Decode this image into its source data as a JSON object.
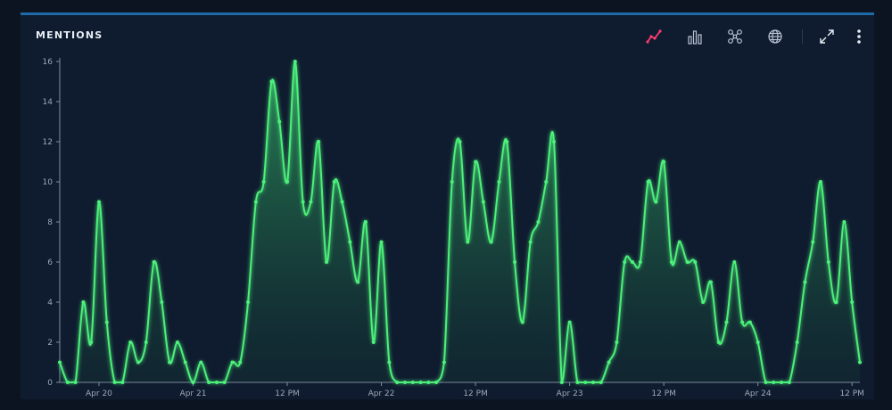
{
  "panel": {
    "title": "MENTIONS",
    "toolbar": [
      {
        "icon": "line-chart-icon",
        "active": true
      },
      {
        "icon": "bar-chart-icon",
        "active": false
      },
      {
        "icon": "network-icon",
        "active": false
      },
      {
        "icon": "globe-icon",
        "active": false
      },
      {
        "icon": "expand-icon",
        "active": false
      },
      {
        "icon": "more-vertical-icon",
        "active": false
      }
    ]
  },
  "colors": {
    "line": "#4cf07a",
    "active_icon": "#ff3d6e",
    "icon": "#b8c4d4",
    "axis": "#7f8ea3"
  },
  "chart_data": {
    "type": "area",
    "title": "",
    "xlabel": "",
    "ylabel": "",
    "ylim": [
      0,
      16
    ],
    "yticks": [
      0,
      2,
      4,
      6,
      8,
      10,
      12,
      14,
      16
    ],
    "grid": false,
    "legend": "none",
    "xticks": [
      {
        "label": "Apr 20",
        "index": 5
      },
      {
        "label": "Apr 21",
        "index": 17
      },
      {
        "label": "12 PM",
        "index": 29
      },
      {
        "label": "Apr 22",
        "index": 41
      },
      {
        "label": "12 PM",
        "index": 53
      },
      {
        "label": "Apr 23",
        "index": 65
      },
      {
        "label": "12 PM",
        "index": 77
      },
      {
        "label": "Apr 24",
        "index": 89
      },
      {
        "label": "12 PM",
        "index": 101
      }
    ],
    "series": [
      {
        "values": [
          1,
          0,
          0,
          4,
          2,
          9,
          3,
          0,
          0,
          2,
          1,
          2,
          6,
          4,
          1,
          2,
          1,
          0,
          1,
          0,
          0,
          0,
          1,
          1,
          4,
          9,
          10,
          15,
          13,
          10,
          16,
          9,
          9,
          12,
          6,
          10,
          9,
          7,
          5,
          8,
          2,
          7,
          1,
          0,
          0,
          0,
          0,
          0,
          0,
          1,
          10,
          12,
          7,
          11,
          9,
          7,
          10,
          12,
          6,
          3,
          7,
          8,
          10,
          12,
          0,
          3,
          0,
          0,
          0,
          0,
          1,
          2,
          6,
          6,
          6,
          10,
          9,
          11,
          6,
          7,
          6,
          6,
          4,
          5,
          2,
          3,
          6,
          3,
          3,
          2,
          0,
          0,
          0,
          0,
          2,
          5,
          7,
          10,
          6,
          4,
          8,
          4,
          1
        ]
      }
    ]
  }
}
